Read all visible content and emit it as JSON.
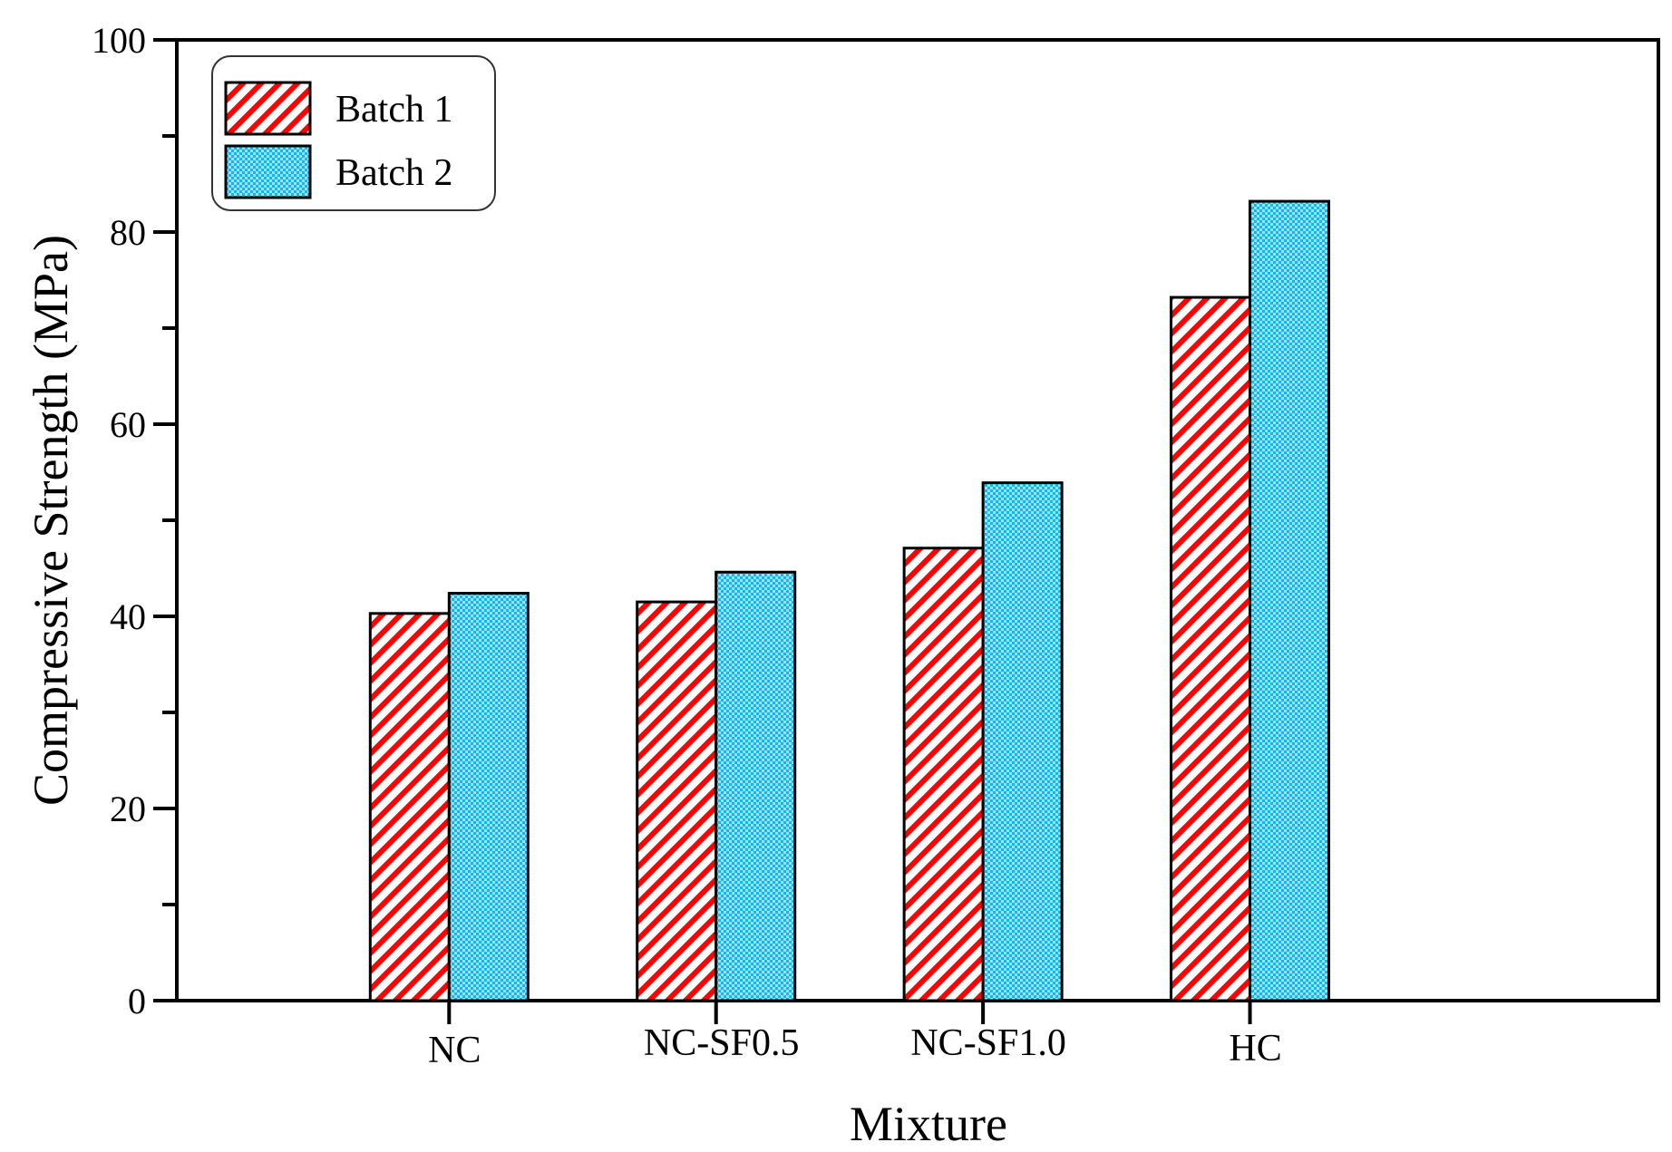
{
  "chart_data": {
    "type": "bar",
    "title": "",
    "xlabel": "Mixture",
    "ylabel": "Compressive Strength (MPa)",
    "categories": [
      "NC",
      "NC-SF0.5",
      "NC-SF1.0",
      "HC"
    ],
    "series": [
      {
        "name": "Batch 1",
        "values": [
          40.3,
          41.5,
          47.1,
          73.2
        ],
        "color": "#ff0000",
        "pattern": "diagonal-hatch"
      },
      {
        "name": "Batch 2",
        "values": [
          42.4,
          44.6,
          53.9,
          83.2
        ],
        "color": "#00b4ff",
        "pattern": "dotted-crosshatch"
      }
    ],
    "ylim": [
      0,
      100
    ],
    "yticks": [
      0,
      20,
      40,
      60,
      80,
      100
    ],
    "yticks_minor": [
      10,
      30,
      50,
      70,
      90
    ],
    "grid": false,
    "legend_position": "top-left"
  }
}
